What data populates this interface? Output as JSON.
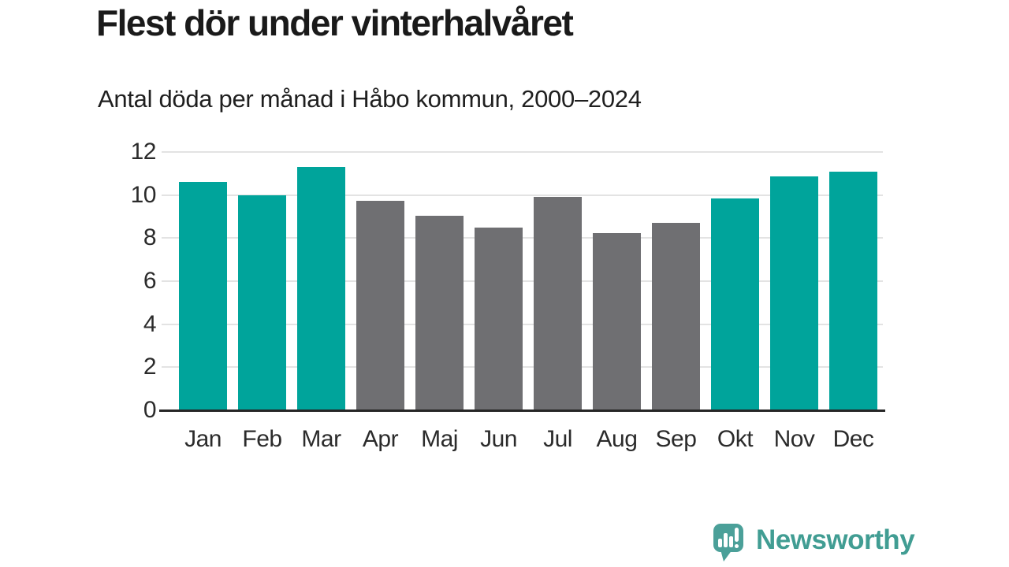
{
  "title": "Flest dör under vinterhalvåret",
  "subtitle": "Antal döda per månad i Håbo kommun, 2000–2024",
  "chart_data": {
    "type": "bar",
    "title": "Flest dör under vinterhalvåret",
    "subtitle": "Antal döda per månad i Håbo kommun, 2000–2024",
    "categories": [
      "Jan",
      "Feb",
      "Mar",
      "Apr",
      "Maj",
      "Jun",
      "Jul",
      "Aug",
      "Sep",
      "Okt",
      "Nov",
      "Dec"
    ],
    "values": [
      10.6,
      10.0,
      11.3,
      9.75,
      9.05,
      8.5,
      9.9,
      8.25,
      8.7,
      9.85,
      10.85,
      11.1
    ],
    "colors": [
      "#00a49b",
      "#00a49b",
      "#00a49b",
      "#6f6f72",
      "#6f6f72",
      "#6f6f72",
      "#6f6f72",
      "#6f6f72",
      "#6f6f72",
      "#00a49b",
      "#00a49b",
      "#00a49b"
    ],
    "highlighted_categories": [
      "Jan",
      "Feb",
      "Mar",
      "Okt",
      "Nov",
      "Dec"
    ],
    "accent_color": "#00a49b",
    "muted_color": "#6f6f72",
    "xlabel": "",
    "ylabel": "",
    "ylim": [
      0,
      12
    ],
    "yticks": [
      0,
      2,
      4,
      6,
      8,
      10,
      12
    ],
    "grid": true,
    "gridline_color": "#e3e3e3",
    "baseline_color": "#262626",
    "legend": false
  },
  "footer": {
    "brand": "Newsworthy",
    "brand_color": "#419d93",
    "logo_icon": "newsworthy-speech-bubble-barchart-icon"
  }
}
